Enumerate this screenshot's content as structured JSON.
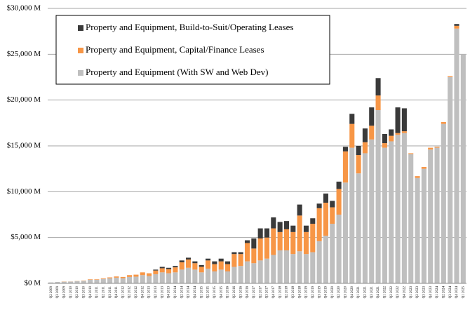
{
  "chart_data": {
    "type": "stacked_bar",
    "categories": [
      "Q2 2009",
      "Q3 2009",
      "Q4 2009",
      "Q1 2010",
      "Q2 2010",
      "Q3 2010",
      "Q4 2010",
      "Q1 2011",
      "Q2 2011",
      "Q3 2011",
      "Q4 2011",
      "Q1 2012",
      "Q2 2012",
      "Q3 2012",
      "Q4 2012",
      "Q1 2013",
      "Q2 2013",
      "Q3 2013",
      "Q4 2013",
      "Q1 2014",
      "Q2 2014",
      "Q3 2014",
      "Q4 2014",
      "Q1 2015",
      "Q2 2015",
      "Q3 2015",
      "Q4 2015",
      "Q1 2016",
      "Q2 2016",
      "Q3 2016",
      "Q4 2016",
      "Q1 2017",
      "Q2 2017",
      "Q3 2017",
      "Q4 2017",
      "Q1 2018",
      "Q2 2018",
      "Q3 2018",
      "Q4 2018",
      "Q1 2019",
      "Q2 2019",
      "Q3 2019",
      "Q4 2019",
      "Q1 2020",
      "Q2 2020",
      "Q3 2020",
      "Q4 2020",
      "Q1 2021",
      "Q2 2021",
      "Q3 2021",
      "Q4 2021",
      "Q1 2022",
      "Q2 2022",
      "Q3 2022",
      "Q4 2022",
      "Q1 2023",
      "Q2 2023",
      "Q3 2023",
      "Q4 2023",
      "Q1 2024",
      "Q2 2024",
      "Q3 2024",
      "Q4 2024",
      "Q1 2025"
    ],
    "series": [
      {
        "name": "Property and Equipment (With SW and Web Dev)",
        "color": "#bfbfbf",
        "values": [
          100,
          150,
          180,
          190,
          230,
          270,
          400,
          400,
          480,
          550,
          620,
          560,
          700,
          730,
          900,
          800,
          1000,
          1200,
          1100,
          1200,
          1500,
          1700,
          1500,
          1200,
          1600,
          1300,
          1500,
          1300,
          1800,
          1900,
          2400,
          2200,
          2500,
          2700,
          3100,
          3600,
          3600,
          3200,
          3500,
          3200,
          3400,
          4600,
          5200,
          6500,
          7500,
          11000,
          14800,
          12000,
          14200,
          15700,
          18900,
          14800,
          15500,
          16200,
          16400,
          14100,
          11500,
          12500,
          14600,
          14800,
          17400,
          22500,
          27800,
          25000
        ]
      },
      {
        "name": "Property and Equipment, Capital/Finance Leases",
        "color": "#f79646",
        "values": [
          0,
          0,
          20,
          10,
          20,
          30,
          50,
          50,
          70,
          100,
          130,
          140,
          200,
          220,
          300,
          300,
          400,
          450,
          450,
          550,
          800,
          900,
          700,
          600,
          900,
          800,
          900,
          800,
          1400,
          1300,
          2000,
          1600,
          2400,
          2300,
          2900,
          2000,
          2300,
          2400,
          3900,
          2400,
          3100,
          3600,
          3600,
          1800,
          2800,
          3400,
          2600,
          2000,
          1200,
          1500,
          1600,
          500,
          600,
          200,
          200,
          100,
          200,
          200,
          200,
          100,
          200,
          100,
          300,
          0
        ]
      },
      {
        "name": "Property and Equipment, Build-to-Suit/Operating Leases",
        "color": "#3a3a3a",
        "values": [
          0,
          0,
          0,
          0,
          0,
          0,
          0,
          0,
          0,
          0,
          0,
          0,
          0,
          0,
          0,
          0,
          100,
          150,
          150,
          150,
          200,
          200,
          200,
          200,
          200,
          300,
          300,
          300,
          200,
          200,
          300,
          1100,
          1100,
          1000,
          1200,
          1100,
          900,
          700,
          1200,
          700,
          600,
          500,
          1000,
          700,
          800,
          500,
          1100,
          1000,
          1500,
          2000,
          1900,
          1000,
          700,
          2800,
          2500,
          0,
          0,
          0,
          0,
          0,
          0,
          0,
          200,
          0
        ]
      }
    ],
    "ylim": [
      0,
      30000
    ],
    "yticks": [
      {
        "value": 0,
        "label": "$0 M"
      },
      {
        "value": 5000,
        "label": "$5,000 M"
      },
      {
        "value": 10000,
        "label": "$10,000 M"
      },
      {
        "value": 15000,
        "label": "$15,000 M"
      },
      {
        "value": 20000,
        "label": "$20,000 M"
      },
      {
        "value": 25000,
        "label": "$25,000 M"
      },
      {
        "value": 30000,
        "label": "$30,000 M"
      }
    ],
    "grid": true
  }
}
